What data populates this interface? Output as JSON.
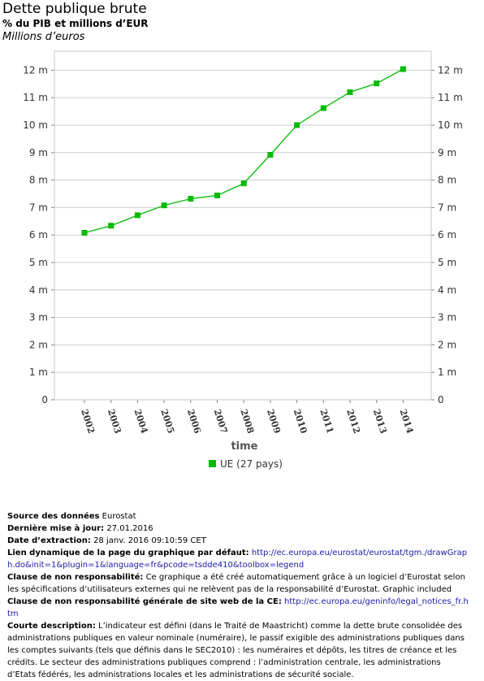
{
  "header": {
    "title": "Dette publique brute",
    "subtitle": "% du PIB et millions d’EUR",
    "unit": "Millions d’euros"
  },
  "chart_data": {
    "type": "line",
    "xlabel": "time",
    "ylabel": "",
    "categories": [
      "2002",
      "2003",
      "2004",
      "2005",
      "2006",
      "2007",
      "2008",
      "2009",
      "2010",
      "2011",
      "2012",
      "2013",
      "2014"
    ],
    "series": [
      {
        "name": "UE (27 pays)",
        "color": "#00bb00",
        "values": [
          6.08,
          6.34,
          6.72,
          7.08,
          7.32,
          7.44,
          7.88,
          8.92,
          10.0,
          10.62,
          11.2,
          11.52,
          12.04
        ]
      }
    ],
    "ylim": [
      0,
      12.6
    ],
    "yticks": [
      0,
      1,
      2,
      3,
      4,
      5,
      6,
      7,
      8,
      9,
      10,
      11,
      12
    ],
    "ytick_labels": [
      "0",
      "1 m",
      "2 m",
      "3 m",
      "4 m",
      "5 m",
      "6 m",
      "7 m",
      "8 m",
      "9 m",
      "10 m",
      "11 m",
      "12 m"
    ],
    "grid": true,
    "legend": "bottom"
  },
  "footer": {
    "source_label": "Source des données",
    "source_value": "Eurostat",
    "update_label": "Dernière mise à jour:",
    "update_value": "27.01.2016",
    "extraction_label": "Date d’extraction:",
    "extraction_value": "28 janv. 2016 09:10:59 CET",
    "link_label": "Lien dynamique de la page du graphique par défaut:",
    "link_value": "http://ec.europa.eu/eurostat/eurostat/tgm./drawGraph.do&init=1&plugin=1&language=fr&pcode=tsdde410&toolbox=legend",
    "disclaimer_label": "Clause de non responsabilité:",
    "disclaimer_value": "Ce graphique a été créé automatiquement grâce à un logiciel d’Eurostat selon les spécifications d’utilisateurs externes qui ne relèvent pas de la responsabilité d’Eurostat. Graphic included",
    "general_disclaimer_label": "Clause de non responsabilité générale de site web de la CE:",
    "general_disclaimer_value": "http://ec.europa.eu/geninfo/legal_notices_fr.htm",
    "description_label": "Courte description:",
    "description_value": "L’indicateur est défini (dans le Traité de Maastricht) comme la dette brute consolidée des administrations publiques en valeur nominale (numéraire), le passif exigible des administrations publiques dans les comptes suivants (tels que définis dans le SEC2010) : les numéraires et dépôts, les titres de créance et les crédits. Le secteur des administrations publiques comprend : l’administration centrale, les administrations d’Etats fédérés, les administrations locales et les administrations de sécurité sociale."
  }
}
